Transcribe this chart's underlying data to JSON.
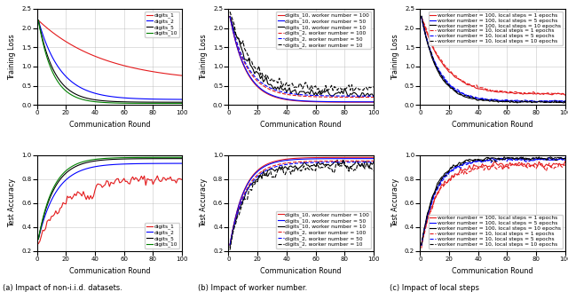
{
  "figure_title_a": "(a) Impact of non-i.i.d. datasets.",
  "figure_title_b": "(b) Impact of worker number.",
  "figure_title_c": "(c) Impact of local steps",
  "xlabel": "Communication Round",
  "ylabel_loss": "Training Loss",
  "ylabel_acc": "Test Accuracy",
  "panel_a_legend_loss": [
    "digits_1",
    "digits_2",
    "digits_5",
    "digits_10"
  ],
  "panel_a_colors": [
    "#e41a1c",
    "#0000ff",
    "#000000",
    "#008000"
  ],
  "panel_b_legend_loss": [
    "digits_10, worker number = 100",
    "digits_10, worker number = 50",
    "digits_10, worker number = 10",
    "digits_2, worker number = 100",
    "digits_2, worker number = 50",
    "digits_2, worker number = 10"
  ],
  "panel_b_colors": [
    "#e41a1c",
    "#0000ff",
    "#000000",
    "#e41a1c",
    "#0000ff",
    "#000000"
  ],
  "panel_b_styles": [
    "-",
    "-",
    "-",
    "--",
    "--",
    "--"
  ],
  "panel_c_legend_loss": [
    "worker number = 100, local steps = 1 epochs",
    "worker number = 100, local steps = 5 epochs",
    "worker number = 100, local steps = 10 epochs",
    "worker number = 10, local steps = 1 epochs",
    "worker number = 10, local steps = 5 epochs",
    "worker number = 10, local steps = 10 epochs"
  ],
  "panel_c_colors": [
    "#e41a1c",
    "#0000ff",
    "#000000",
    "#e41a1c",
    "#0000ff",
    "#000000"
  ],
  "panel_c_styles": [
    "-",
    "-",
    "-",
    "--",
    "--",
    "--"
  ],
  "seed": 42
}
